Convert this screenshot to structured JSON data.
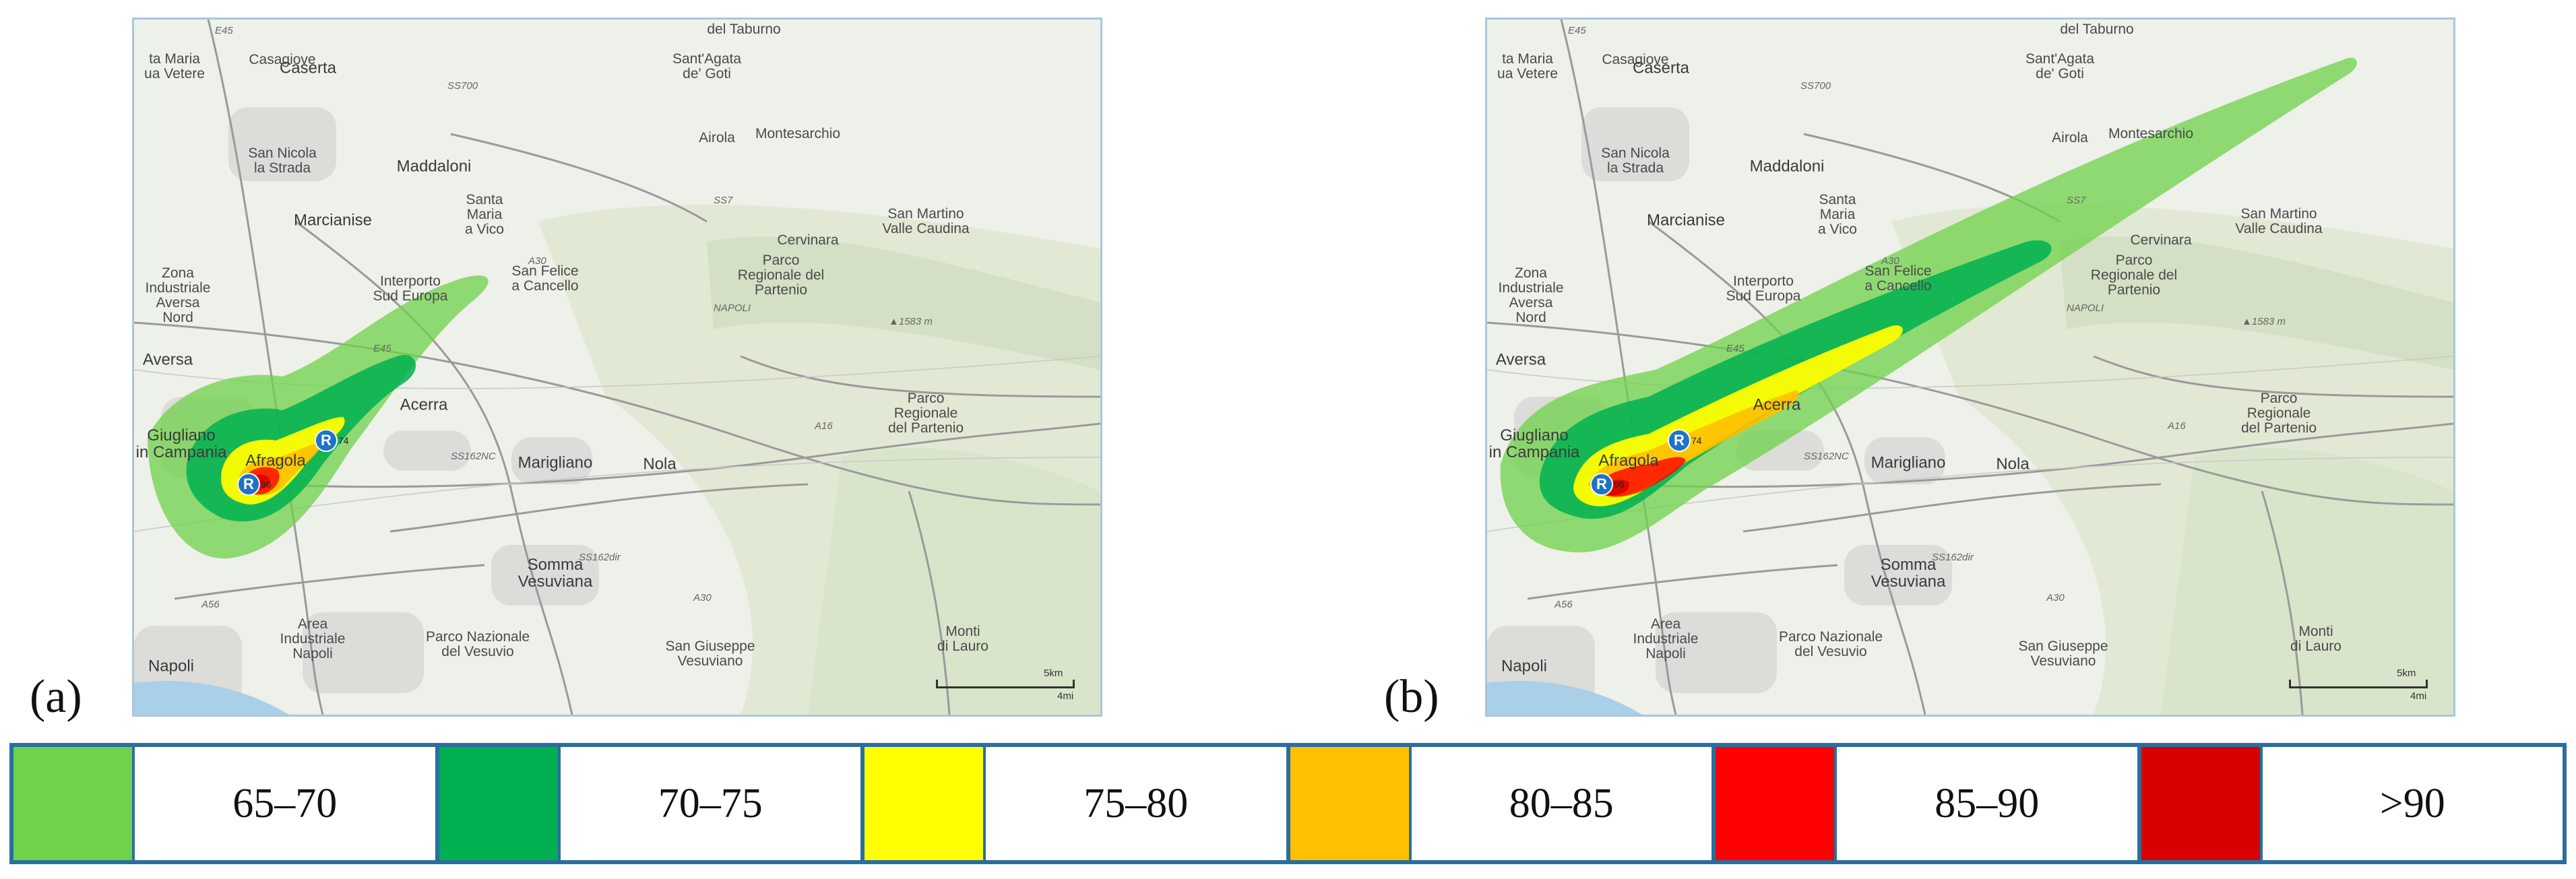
{
  "panels": [
    {
      "id": "a",
      "label": "(a)"
    },
    {
      "id": "b",
      "label": "(b)"
    }
  ],
  "map": {
    "places": [
      {
        "name": "Caserta",
        "big": true
      },
      {
        "name": "Casagiove"
      },
      {
        "name": "ta Maria\nua Vetere"
      },
      {
        "name": "San Nicola\nla Strada"
      },
      {
        "name": "Maddaloni",
        "big": true
      },
      {
        "name": "Marcianise",
        "big": true
      },
      {
        "name": "Sant'Agata\nde' Goti"
      },
      {
        "name": "Airola"
      },
      {
        "name": "Montesarchio"
      },
      {
        "name": "Santa\nMaria\na Vico"
      },
      {
        "name": "Cervinara"
      },
      {
        "name": "San Martino\nValle Caudina"
      },
      {
        "name": "Zona\nIndustriale\nAversa\nNord"
      },
      {
        "name": "Interporto\nSud Europa"
      },
      {
        "name": "San Felice\na Cancello"
      },
      {
        "name": "Parco\nRegionale del\nPartenio"
      },
      {
        "name": "Aversa",
        "big": true
      },
      {
        "name": "Acerra",
        "big": true
      },
      {
        "name": "Giugliano\nin Campania",
        "big": true
      },
      {
        "name": "Afragola",
        "big": true
      },
      {
        "name": "Marigliano",
        "big": true
      },
      {
        "name": "Nola",
        "big": true
      },
      {
        "name": "Parco\nRegionale\ndel Partenio"
      },
      {
        "name": "Somma\nVesuviana",
        "big": true
      },
      {
        "name": "Napoli",
        "big": true
      },
      {
        "name": "Area\nIndustriale\nNapoli"
      },
      {
        "name": "Parco Nazionale\ndel Vesuvio"
      },
      {
        "name": "San Giuseppe\nVesuviano"
      },
      {
        "name": "Monti\ndi Lauro"
      },
      {
        "name": "del Taburno"
      }
    ],
    "roads": [
      "E45",
      "SS700",
      "SS7",
      "A30",
      "E45",
      "SS162NC",
      "A16",
      "SS162dir",
      "A56",
      "A30",
      "NAPOLI"
    ],
    "peak_label": "▲1583 m",
    "scale": {
      "km": "5km",
      "mi": "4mi"
    },
    "receptors": [
      {
        "label": "R",
        "value": "96"
      },
      {
        "label": "R",
        "value": "74"
      }
    ]
  },
  "legend": [
    {
      "range": "65–70",
      "color": "#6fd24a"
    },
    {
      "range": "70–75",
      "color": "#00b050"
    },
    {
      "range": "75–80",
      "color": "#ffff00"
    },
    {
      "range": "80–85",
      "color": "#ffc000"
    },
    {
      "range": "85–90",
      "color": "#ff0000"
    },
    {
      "range": ">90",
      "color": "#d90000"
    }
  ]
}
